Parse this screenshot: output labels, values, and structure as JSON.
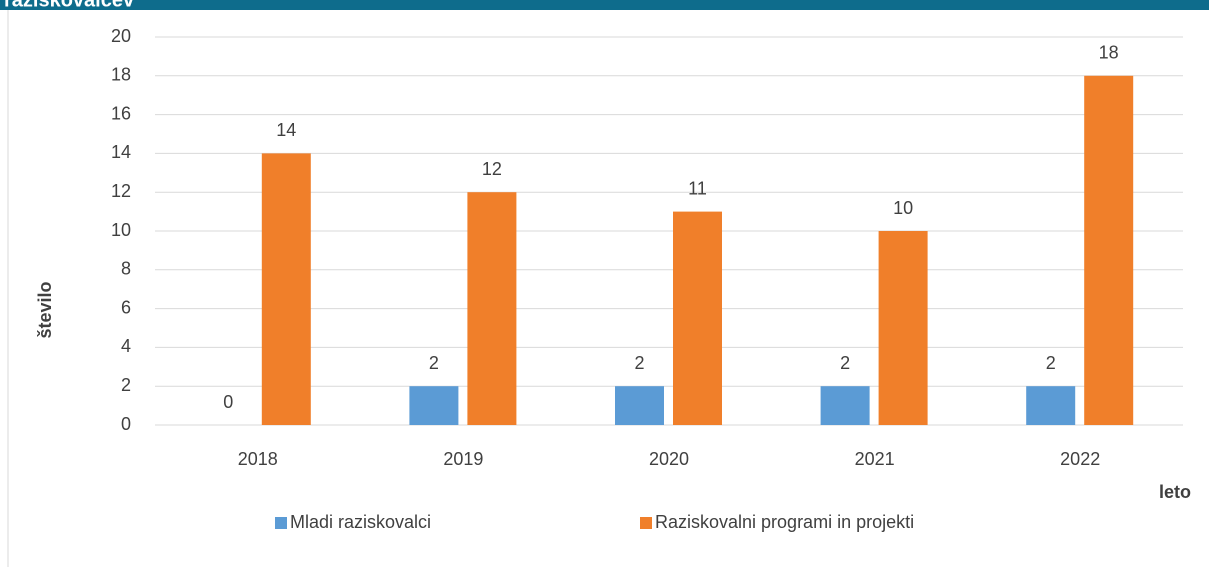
{
  "header": {
    "title": "raziskovalcev"
  },
  "chart_data": {
    "type": "bar",
    "x_label": "leto",
    "y_label": "število",
    "categories": [
      "2018",
      "2019",
      "2020",
      "2021",
      "2022"
    ],
    "series": [
      {
        "name": "Mladi raziskovalci",
        "color": "#5b9bd5",
        "values": [
          0,
          2,
          2,
          2,
          2
        ]
      },
      {
        "name": "Raziskovalni programi in projekti",
        "color": "#f07f2a",
        "values": [
          14,
          12,
          11,
          10,
          18
        ]
      }
    ],
    "ylim": [
      0,
      20
    ],
    "yticks": [
      0,
      2,
      4,
      6,
      8,
      10,
      12,
      14,
      16,
      18,
      20
    ],
    "grid": true,
    "legend": "bottom"
  }
}
